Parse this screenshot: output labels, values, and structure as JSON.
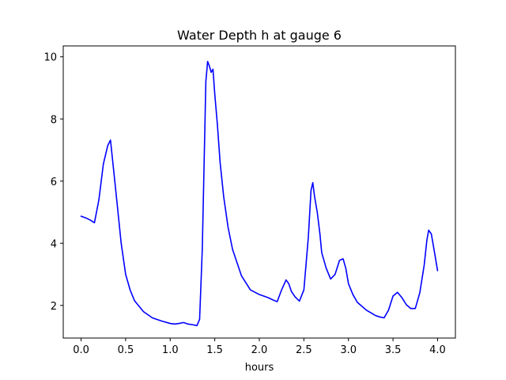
{
  "chart_data": {
    "type": "line",
    "title": "Water Depth h at gauge 6",
    "xlabel": "hours",
    "ylabel": "",
    "xlim": [
      -0.2,
      4.2
    ],
    "ylim": [
      0.95,
      10.35
    ],
    "xticks": [
      0.0,
      0.5,
      1.0,
      1.5,
      2.0,
      2.5,
      3.0,
      3.5,
      4.0
    ],
    "xtick_labels": [
      "0.0",
      "0.5",
      "1.0",
      "1.5",
      "2.0",
      "2.5",
      "3.0",
      "3.5",
      "4.0"
    ],
    "yticks": [
      2,
      4,
      6,
      8,
      10
    ],
    "ytick_labels": [
      "2",
      "4",
      "6",
      "8",
      "10"
    ],
    "grid": false,
    "series": [
      {
        "color": "#0000ff",
        "x": [
          0.0,
          0.05,
          0.1,
          0.15,
          0.2,
          0.25,
          0.3,
          0.33,
          0.36,
          0.4,
          0.45,
          0.5,
          0.55,
          0.6,
          0.7,
          0.8,
          0.9,
          1.0,
          1.05,
          1.1,
          1.15,
          1.2,
          1.25,
          1.3,
          1.33,
          1.36,
          1.38,
          1.4,
          1.42,
          1.44,
          1.46,
          1.48,
          1.5,
          1.53,
          1.56,
          1.6,
          1.65,
          1.7,
          1.8,
          1.9,
          2.0,
          2.05,
          2.1,
          2.15,
          2.2,
          2.25,
          2.3,
          2.33,
          2.36,
          2.4,
          2.45,
          2.5,
          2.55,
          2.58,
          2.6,
          2.62,
          2.65,
          2.68,
          2.7,
          2.75,
          2.8,
          2.85,
          2.9,
          2.94,
          2.97,
          3.0,
          3.05,
          3.1,
          3.2,
          3.3,
          3.35,
          3.4,
          3.45,
          3.5,
          3.55,
          3.6,
          3.65,
          3.7,
          3.75,
          3.8,
          3.85,
          3.88,
          3.9,
          3.93,
          3.96,
          4.0
        ],
        "y": [
          4.87,
          4.82,
          4.75,
          4.66,
          5.4,
          6.55,
          7.15,
          7.32,
          6.5,
          5.4,
          4.0,
          3.0,
          2.5,
          2.15,
          1.8,
          1.6,
          1.5,
          1.42,
          1.4,
          1.42,
          1.45,
          1.4,
          1.38,
          1.35,
          1.55,
          3.8,
          6.5,
          9.2,
          9.85,
          9.7,
          9.5,
          9.6,
          8.8,
          7.8,
          6.6,
          5.5,
          4.5,
          3.8,
          2.95,
          2.5,
          2.35,
          2.3,
          2.25,
          2.18,
          2.12,
          2.5,
          2.82,
          2.7,
          2.45,
          2.28,
          2.14,
          2.5,
          4.2,
          5.7,
          5.95,
          5.5,
          5.0,
          4.3,
          3.7,
          3.2,
          2.85,
          3.0,
          3.45,
          3.5,
          3.2,
          2.7,
          2.35,
          2.1,
          1.85,
          1.68,
          1.63,
          1.6,
          1.85,
          2.3,
          2.42,
          2.25,
          2.02,
          1.9,
          1.9,
          2.4,
          3.3,
          4.1,
          4.42,
          4.3,
          3.8,
          3.12
        ]
      }
    ]
  }
}
